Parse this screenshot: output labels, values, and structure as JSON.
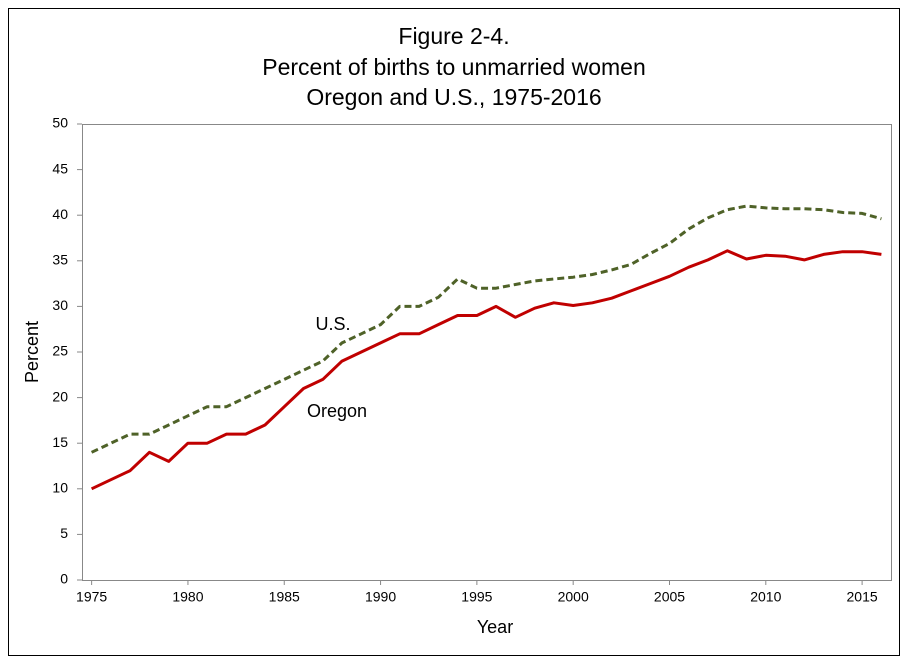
{
  "chart_data": {
    "type": "line",
    "title": "Figure 2-4.",
    "subtitle": [
      "Percent of births to unmarried women",
      "Oregon and U.S., 1975-2016"
    ],
    "x_label": "Year",
    "y_label": "Percent",
    "x": [
      1975,
      1976,
      1977,
      1978,
      1979,
      1980,
      1981,
      1982,
      1983,
      1984,
      1985,
      1986,
      1987,
      1988,
      1989,
      1990,
      1991,
      1992,
      1993,
      1994,
      1995,
      1996,
      1997,
      1998,
      1999,
      2000,
      2001,
      2002,
      2003,
      2004,
      2005,
      2006,
      2007,
      2008,
      2009,
      2010,
      2011,
      2012,
      2013,
      2014,
      2015,
      2016
    ],
    "series": [
      {
        "name": "Oregon",
        "color": "#c00000",
        "dashed": false,
        "values": [
          10,
          11,
          12,
          14,
          13,
          15,
          15,
          16,
          16,
          17,
          19,
          21,
          22,
          24,
          25,
          26,
          27,
          27,
          28,
          29,
          29,
          30,
          28.8,
          29.8,
          30.4,
          30.1,
          30.4,
          30.9,
          31.7,
          32.5,
          33.3,
          34.3,
          35.1,
          36.1,
          35.2,
          35.6,
          35.5,
          35.1,
          35.7,
          36,
          36,
          35.7
        ]
      },
      {
        "name": "U.S.",
        "color": "#4f6228",
        "dashed": true,
        "values": [
          14,
          15,
          16,
          16,
          17,
          18,
          19,
          19,
          20,
          21,
          22,
          23,
          24,
          26,
          27,
          28,
          30,
          30,
          31,
          33,
          32,
          32,
          32.4,
          32.8,
          33,
          33.2,
          33.5,
          34,
          34.6,
          35.8,
          36.9,
          38.5,
          39.7,
          40.6,
          41,
          40.8,
          40.7,
          40.7,
          40.6,
          40.3,
          40.2,
          39.6
        ]
      }
    ],
    "xlim": [
      1974.5,
      2016.5
    ],
    "xticks": [
      1975,
      1980,
      1985,
      1990,
      1995,
      2000,
      2005,
      2010,
      2015
    ],
    "ylim": [
      0,
      50
    ],
    "yticks": [
      0,
      5,
      10,
      15,
      20,
      25,
      30,
      35,
      40,
      45,
      50
    ],
    "grid": false
  }
}
